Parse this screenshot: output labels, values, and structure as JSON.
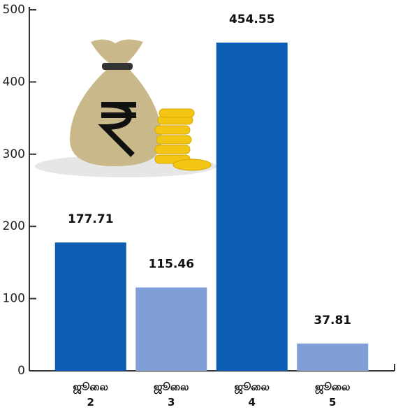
{
  "chart_data": {
    "type": "bar",
    "categories": [
      "ஜூலை 2",
      "ஜூலை 3",
      "ஜூலை 4",
      "ஜூலை 5"
    ],
    "values": [
      177.71,
      115.46,
      454.55,
      37.81
    ],
    "colors": [
      "#0b5db3",
      "#7f9fd6",
      "#0b5db3",
      "#7f9fd6"
    ],
    "ylim": [
      0,
      500
    ],
    "yticks": [
      0,
      100,
      200,
      300,
      400,
      500
    ]
  }
}
